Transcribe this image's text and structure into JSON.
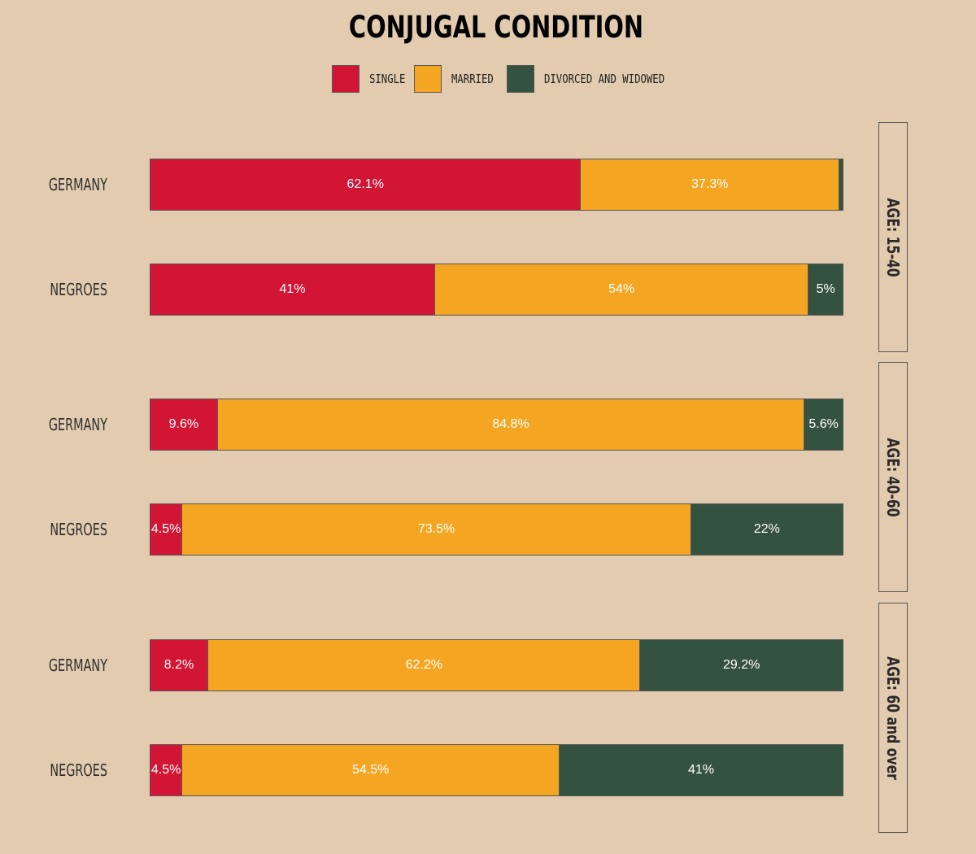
{
  "chart_data": {
    "type": "bar",
    "stacked": true,
    "orientation": "horizontal",
    "title": "CONJUGAL CONDITION",
    "legend": [
      {
        "name": "SINGLE",
        "color": "#d31535"
      },
      {
        "name": "MARRIED",
        "color": "#f4a623"
      },
      {
        "name": "DIVORCED AND WIDOWED",
        "color": "#345240"
      }
    ],
    "legend_position": "top-center",
    "xlim": [
      0,
      100
    ],
    "groups": [
      {
        "facet_label": "AGE: 15-40",
        "rows": [
          {
            "label": "GERMANY",
            "values": [
              62.1,
              37.3,
              0.6
            ],
            "labels": [
              "62.1%",
              "37.3%",
              ""
            ]
          },
          {
            "label": "NEGROES",
            "values": [
              41,
              54,
              5
            ],
            "labels": [
              "41%",
              "54%",
              "5%"
            ]
          }
        ]
      },
      {
        "facet_label": "AGE: 40-60",
        "rows": [
          {
            "label": "GERMANY",
            "values": [
              9.6,
              84.8,
              5.6
            ],
            "labels": [
              "9.6%",
              "84.8%",
              "5.6%"
            ]
          },
          {
            "label": "NEGROES",
            "values": [
              4.5,
              73.5,
              22
            ],
            "labels": [
              "4.5%",
              "73.5%",
              "22%"
            ]
          }
        ]
      },
      {
        "facet_label": "AGE: 60 and over",
        "rows": [
          {
            "label": "GERMANY",
            "values": [
              8.2,
              62.2,
              29.2
            ],
            "labels": [
              "8.2%",
              "62.2%",
              "29.2%"
            ]
          },
          {
            "label": "NEGROES",
            "values": [
              4.5,
              54.5,
              41
            ],
            "labels": [
              "4.5%",
              "54.5%",
              "41%"
            ]
          }
        ]
      }
    ],
    "grid": false
  }
}
